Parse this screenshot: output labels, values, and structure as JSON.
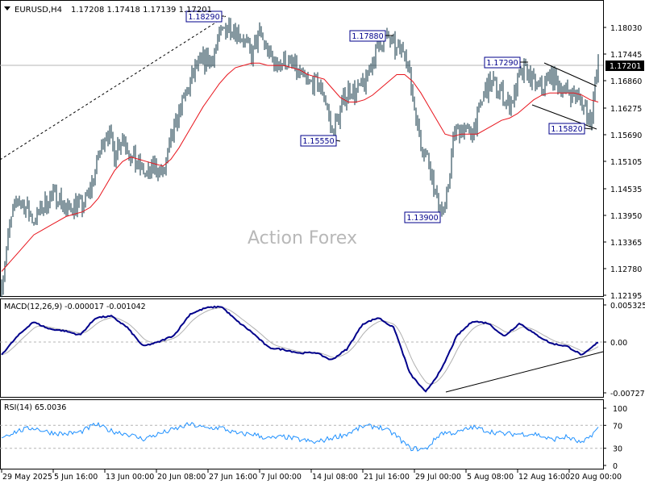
{
  "header": {
    "symbol": "EURUSD,H4",
    "ohlc": "1.17208 1.17418 1.17139 1.17201",
    "menu_icon": "triangle-down-icon"
  },
  "watermark": "Action Forex",
  "colors": {
    "bars": "#0b3140",
    "ma": "#e8141c",
    "macd": "#00008b",
    "signal": "#b0b0b0",
    "rsi": "#1e90ff",
    "label_border": "#00008b"
  },
  "chart_data": [
    {
      "type": "line",
      "title": "EURUSD,H4",
      "ylim": [
        1.12195,
        1.1855
      ],
      "y_ticks": [
        "1.18030",
        "1.17445",
        "1.16860",
        "1.16275",
        "1.15690",
        "1.15105",
        "1.14535",
        "1.13950",
        "1.13365",
        "1.12780",
        "1.12195"
      ],
      "x_ticks": [
        "29 May 2025",
        "5 Jun 16:00",
        "13 Jun 00:00",
        "20 Jun 08:00",
        "27 Jun 16:00",
        "7 Jul 00:00",
        "14 Jul 08:00",
        "21 Jul 16:00",
        "29 Jul 00:00",
        "5 Aug 08:00",
        "12 Aug 16:00",
        "20 Aug 00:00"
      ],
      "current_price": "1.17201",
      "series": [
        {
          "values": [
            1.124,
            1.137,
            1.143,
            1.141,
            1.138,
            1.141,
            1.143,
            1.144,
            1.14,
            1.142,
            1.141,
            1.145,
            1.152,
            1.158,
            1.153,
            1.157,
            1.152,
            1.15,
            1.148,
            1.15,
            1.148,
            1.155,
            1.162,
            1.166,
            1.171,
            1.173,
            1.173,
            1.178,
            1.181,
            1.18,
            1.178,
            1.174,
            1.179,
            1.175,
            1.172,
            1.173,
            1.172,
            1.17,
            1.168,
            1.168,
            1.166,
            1.157,
            1.162,
            1.167,
            1.166,
            1.168,
            1.173,
            1.177,
            1.178,
            1.175,
            1.176,
            1.165,
            1.155,
            1.151,
            1.142,
            1.14,
            1.156,
            1.159,
            1.157,
            1.16,
            1.167,
            1.168,
            1.166,
            1.163,
            1.168,
            1.171,
            1.168,
            1.167,
            1.17,
            1.168,
            1.166,
            1.166,
            1.164,
            1.16,
            1.172
          ]
        },
        {
          "values": [
            1.127,
            1.129,
            1.131,
            1.133,
            1.135,
            1.136,
            1.137,
            1.138,
            1.139,
            1.1395,
            1.14,
            1.141,
            1.143,
            1.146,
            1.149,
            1.151,
            1.152,
            1.1515,
            1.151,
            1.1505,
            1.15,
            1.1515,
            1.154,
            1.157,
            1.16,
            1.163,
            1.1655,
            1.168,
            1.17,
            1.1715,
            1.172,
            1.1725,
            1.1725,
            1.172,
            1.172,
            1.172,
            1.1715,
            1.171,
            1.17,
            1.1695,
            1.169,
            1.167,
            1.165,
            1.164,
            1.164,
            1.1645,
            1.1655,
            1.167,
            1.1685,
            1.17,
            1.17,
            1.1685,
            1.166,
            1.163,
            1.16,
            1.157,
            1.1565,
            1.157,
            1.157,
            1.157,
            1.158,
            1.159,
            1.16,
            1.1605,
            1.1615,
            1.163,
            1.1645,
            1.1655,
            1.166,
            1.166,
            1.166,
            1.166,
            1.1655,
            1.1645,
            1.164
          ]
        }
      ],
      "annotations": [
        "1.18290",
        "1.17880",
        "1.17290",
        "1.15550",
        "1.13900",
        "1.15820"
      ]
    },
    {
      "type": "line",
      "title": "MACD(12,26,9) -0.000017 -0.001042",
      "ylim": [
        -0.007273,
        0.005325
      ],
      "y_ticks": [
        "0.005325",
        "0.00",
        "-0.007273"
      ],
      "series": [
        {
          "values": [
            -0.0018,
            0.0008,
            0.0029,
            0.0019,
            0.0016,
            0.001,
            0.0035,
            0.0037,
            0.0021,
            -0.0006,
            0.0,
            0.001,
            0.004,
            0.0049,
            0.0051,
            0.003,
            0.0013,
            -0.0008,
            -0.0011,
            -0.0016,
            -0.0015,
            -0.0026,
            -0.001,
            0.0026,
            0.0035,
            0.002,
            -0.0045,
            -0.0072,
            -0.004,
            0.0009,
            0.003,
            0.0027,
            0.0008,
            0.0027,
            0.0011,
            -0.0002,
            -0.0006,
            -0.0019,
            0.0
          ]
        }
      ]
    },
    {
      "type": "line",
      "title": "RSI(14) 65.0036",
      "ylim": [
        0,
        100
      ],
      "y_ticks": [
        "100",
        "70",
        "30",
        "0"
      ],
      "levels": [
        70,
        30
      ],
      "series": [
        {
          "values": [
            50,
            60,
            66,
            58,
            55,
            58,
            72,
            60,
            55,
            46,
            55,
            63,
            72,
            65,
            66,
            55,
            55,
            47,
            50,
            45,
            40,
            48,
            55,
            68,
            68,
            55,
            30,
            28,
            57,
            57,
            67,
            60,
            55,
            55,
            55,
            45,
            50,
            38,
            65
          ]
        }
      ]
    }
  ]
}
